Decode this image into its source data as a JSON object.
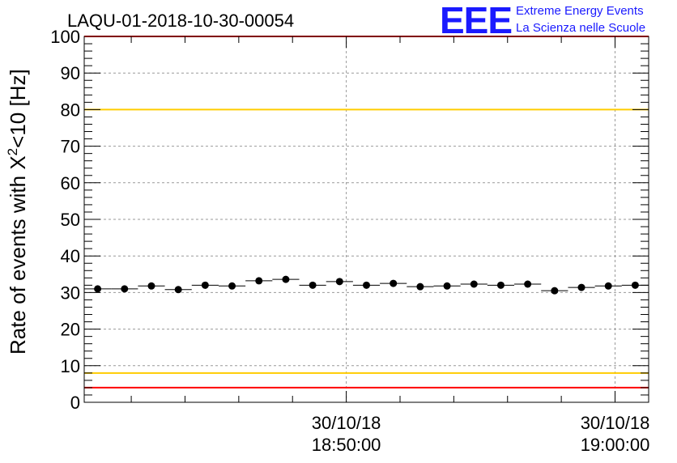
{
  "header": {
    "title": "LAQU-01-2018-10-30-00054",
    "logo_text": "EEE",
    "logo_line1": "Extreme Energy Events",
    "logo_line2": "La Scienza nelle Scuole"
  },
  "chart_data": {
    "type": "scatter",
    "title": "LAQU-01-2018-10-30-00054",
    "ylabel": "Rate of events with X²<10 [Hz]",
    "ylabel_parts": [
      "Rate of events with X",
      "2",
      "<10 [Hz]"
    ],
    "xlabel": "",
    "x_axis_type": "time",
    "xlim": [
      "30/10/18 18:40:15",
      "30/10/18 19:01:15"
    ],
    "ylim": [
      0,
      100
    ],
    "y_ticks": [
      0,
      10,
      20,
      30,
      40,
      50,
      60,
      70,
      80,
      90,
      100
    ],
    "x_tick_labels": [
      {
        "time": "30/10/18 18:50:00",
        "line1": "30/10/18",
        "line2": "18:50:00"
      },
      {
        "time": "30/10/18 19:00:00",
        "line1": "30/10/18",
        "line2": "19:00:00"
      }
    ],
    "grid": true,
    "bin_width_seconds": 60,
    "series": [
      {
        "x": [
          "30/10/18 18:40:45",
          "30/10/18 18:41:45",
          "30/10/18 18:42:45",
          "30/10/18 18:43:45",
          "30/10/18 18:44:45",
          "30/10/18 18:45:45",
          "30/10/18 18:46:45",
          "30/10/18 18:47:45",
          "30/10/18 18:48:45",
          "30/10/18 18:49:45",
          "30/10/18 18:50:45",
          "30/10/18 18:51:45",
          "30/10/18 18:52:45",
          "30/10/18 18:53:45",
          "30/10/18 18:54:45",
          "30/10/18 18:55:45",
          "30/10/18 18:56:45",
          "30/10/18 18:57:45",
          "30/10/18 18:58:45",
          "30/10/18 18:59:45",
          "30/10/18 19:00:45"
        ],
        "values": [
          31.0,
          31.0,
          31.8,
          30.8,
          32.0,
          31.8,
          33.2,
          33.6,
          32.0,
          33.0,
          32.0,
          32.5,
          31.6,
          31.8,
          32.3,
          32.0,
          32.3,
          30.5,
          31.4,
          31.8,
          32.0
        ]
      }
    ],
    "reference_lines": [
      {
        "y": 100,
        "color": "#ff0000"
      },
      {
        "y": 80,
        "color": "#ffcc00"
      },
      {
        "y": 8,
        "color": "#ffcc00"
      },
      {
        "y": 4,
        "color": "#ff0000"
      }
    ],
    "marker_color": "#000000"
  }
}
